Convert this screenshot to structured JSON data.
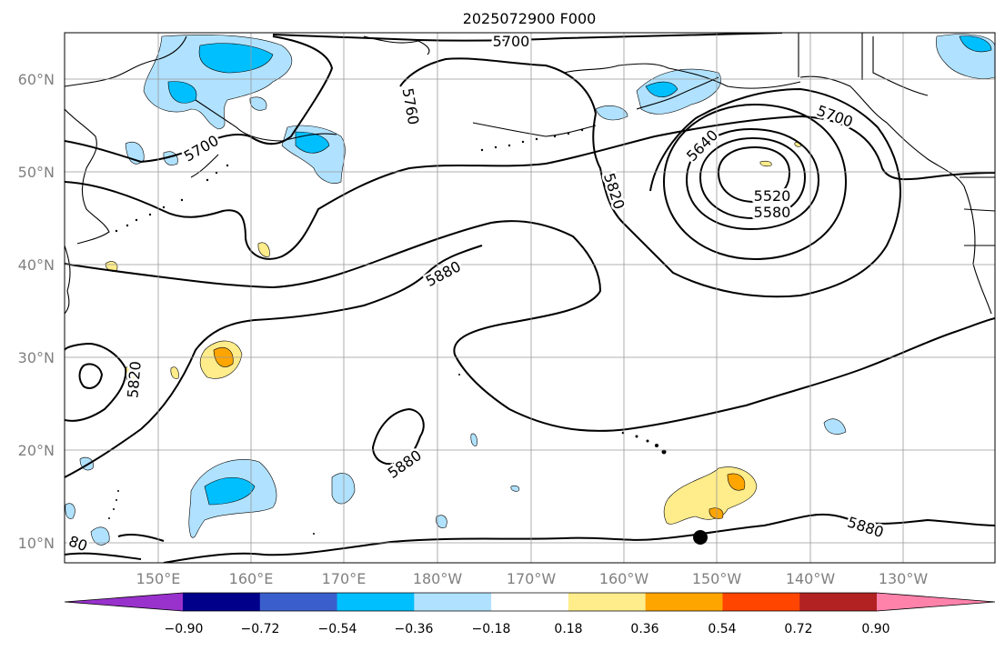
{
  "title": "2025072900 F000",
  "map": {
    "lat_labels": [
      "60°N",
      "50°N",
      "40°N",
      "30°N",
      "20°N",
      "10°N"
    ],
    "lon_labels": [
      "150°E",
      "160°E",
      "170°E",
      "180°W",
      "170°W",
      "160°W",
      "150°W",
      "140°W",
      "130°W"
    ],
    "contour_labels": [
      "5700",
      "5760",
      "5700",
      "5820",
      "5640",
      "5700",
      "5520",
      "5580",
      "5880",
      "5820",
      "5880",
      "5880",
      "80"
    ],
    "contour_color": "#000000",
    "grid_color": "#999999"
  },
  "colorbar": {
    "ticks": [
      "−0.90",
      "−0.72",
      "−0.54",
      "−0.36",
      "−0.18",
      "0.18",
      "0.36",
      "0.54",
      "0.72",
      "0.90"
    ],
    "colors": [
      "#9932cc",
      "#00008b",
      "#3a5fcd",
      "#00bfff",
      "#b0e2ff",
      "#ffffff",
      "#ffec8b",
      "#ffa500",
      "#ff4500",
      "#b22222",
      "#ff82ab"
    ]
  }
}
